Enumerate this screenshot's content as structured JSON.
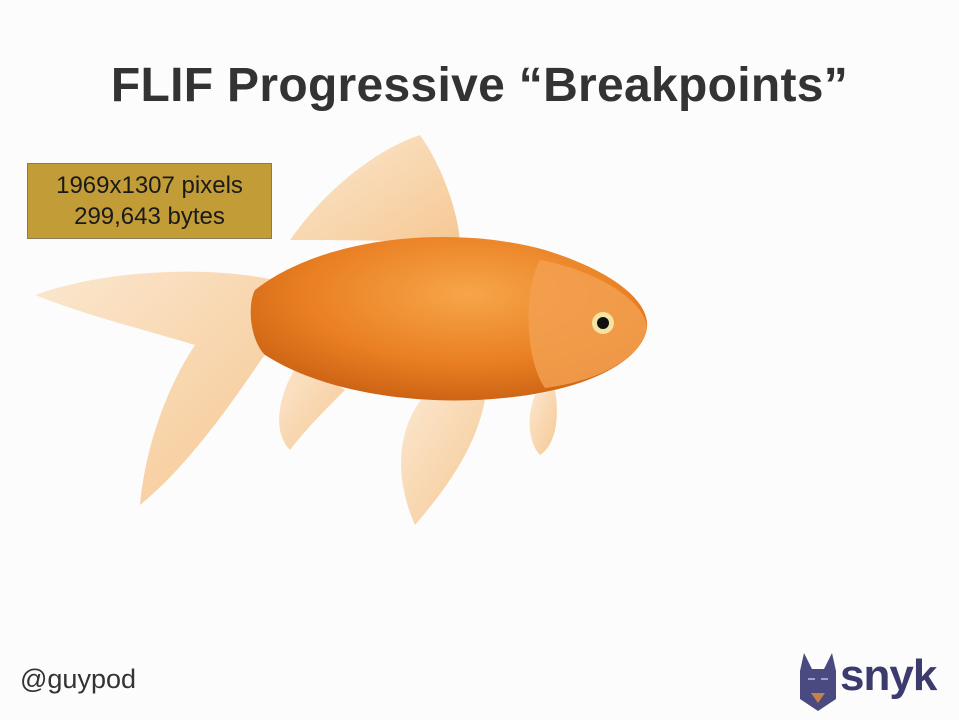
{
  "slide": {
    "title": "FLIF Progressive “Breakpoints”",
    "info": {
      "dimensions": "1969x1307 pixels",
      "size": "299,643 bytes"
    },
    "handle": "@guypod",
    "logo": {
      "text": "snyk",
      "icon": "doberman-icon"
    }
  },
  "colors": {
    "infobox": "#c29c36",
    "title": "#333333",
    "fish_body": "#e8822a",
    "logo": "#3b3b6e"
  }
}
